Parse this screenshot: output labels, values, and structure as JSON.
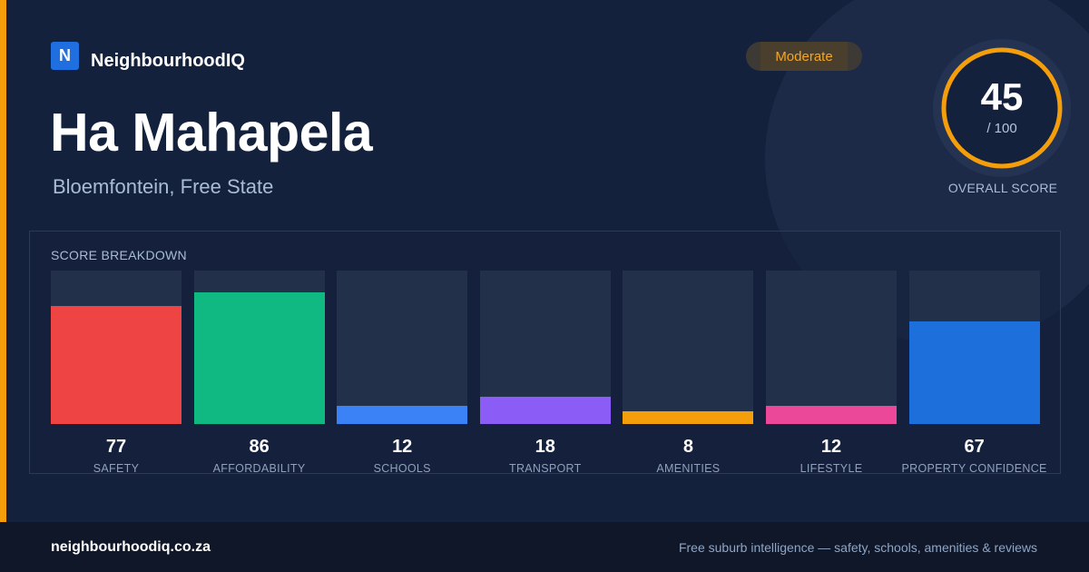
{
  "brand": {
    "logo_letter": "N",
    "name": "NeighbourhoodIQ"
  },
  "suburb": {
    "name": "Ha Mahapela",
    "location": "Bloemfontein, Free State"
  },
  "badge": {
    "label": "Moderate"
  },
  "overall": {
    "score": "45",
    "max": "/ 100",
    "fraction": 0.45,
    "label": "OVERALL SCORE",
    "ring_color": "#f59e0b"
  },
  "breakdown": {
    "title": "SCORE BREAKDOWN",
    "items": [
      {
        "value": "77",
        "label": "SAFETY",
        "color": "#ef4444"
      },
      {
        "value": "86",
        "label": "AFFORDABILITY",
        "color": "#10b981"
      },
      {
        "value": "12",
        "label": "SCHOOLS",
        "color": "#3b82f6"
      },
      {
        "value": "18",
        "label": "TRANSPORT",
        "color": "#8b5cf6"
      },
      {
        "value": "8",
        "label": "AMENITIES",
        "color": "#f59e0b"
      },
      {
        "value": "12",
        "label": "LIFESTYLE",
        "color": "#ec4899"
      },
      {
        "value": "67",
        "label": "PROPERTY CONFIDENCE",
        "color": "#1d6fdc"
      }
    ]
  },
  "footer": {
    "url": "neighbourhoodiq.co.za",
    "tagline": "Free suburb intelligence — safety, schools, amenities & reviews"
  }
}
